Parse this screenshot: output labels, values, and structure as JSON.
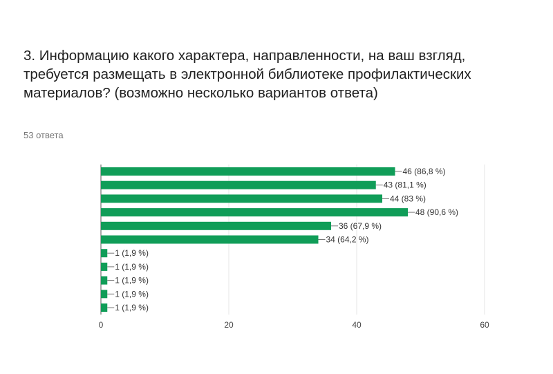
{
  "question": {
    "title": "3. Информацию какого характера, направленности, на ваш взгляд, требуется размещать в электронной библиотеке профилактических материалов? (возможно несколько вариантов ответа)",
    "responses": "53 ответа"
  },
  "chart_data": {
    "type": "bar",
    "orientation": "horizontal",
    "values": [
      46,
      43,
      44,
      48,
      36,
      34,
      1,
      1,
      1,
      1,
      1
    ],
    "data_labels": [
      "46 (86,8 %)",
      "43 (81,1 %)",
      "44 (83 %)",
      "48 (90,6 %)",
      "36 (67,9 %)",
      "34 (64,2 %)",
      "1 (1,9 %)",
      "1 (1,9 %)",
      "1 (1,9 %)",
      "1 (1,9 %)",
      "1 (1,9 %)"
    ],
    "xlim": [
      0,
      60
    ],
    "xticks": [
      0,
      20,
      40,
      60
    ],
    "grid": true,
    "bar_color": "#109d58"
  }
}
